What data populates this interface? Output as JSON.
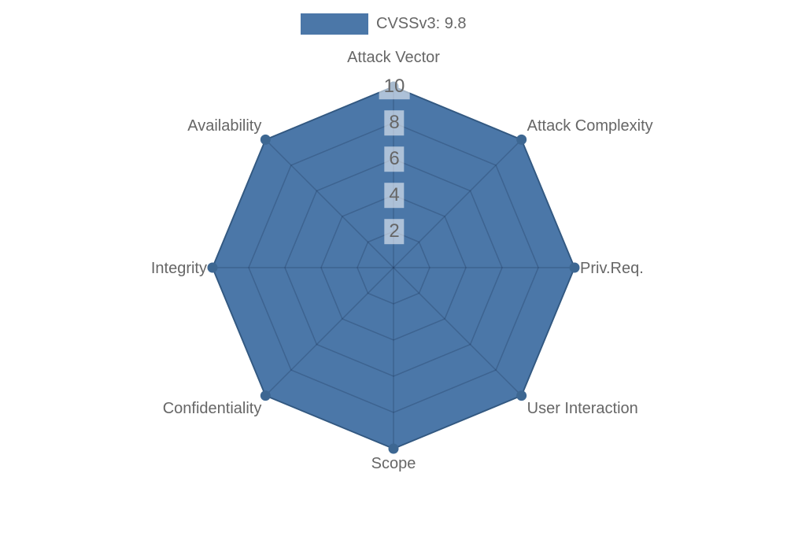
{
  "page": {
    "background": "#ffffff"
  },
  "legend": {
    "label": "CVSSv3: 9.8",
    "swatch_color": "#4b77a8"
  },
  "chart_data": {
    "type": "radar",
    "title": "CVSSv3: 9.8",
    "categories": [
      "Attack Vector",
      "Attack Complexity",
      "Priv.Req.",
      "User Interaction",
      "Scope",
      "Confidentiality",
      "Integrity",
      "Availability"
    ],
    "series": [
      {
        "name": "CVSSv3: 9.8",
        "values": [
          10,
          10,
          10,
          10,
          10,
          10,
          10,
          10
        ]
      }
    ],
    "ticks": [
      2,
      4,
      6,
      8,
      10
    ],
    "rmin": 0,
    "rmax": 10,
    "grid": true,
    "grid_shape": "polygon",
    "legend_position": "top",
    "colors": {
      "fill": "#4b77a8",
      "border": "#3d6792",
      "marker": "#3d6792",
      "grid_line": "rgba(20,40,70,0.25)",
      "label_text": "#666666",
      "tick_text": "#666666",
      "tick_backdrop": "rgba(255,255,255,0.55)"
    }
  }
}
